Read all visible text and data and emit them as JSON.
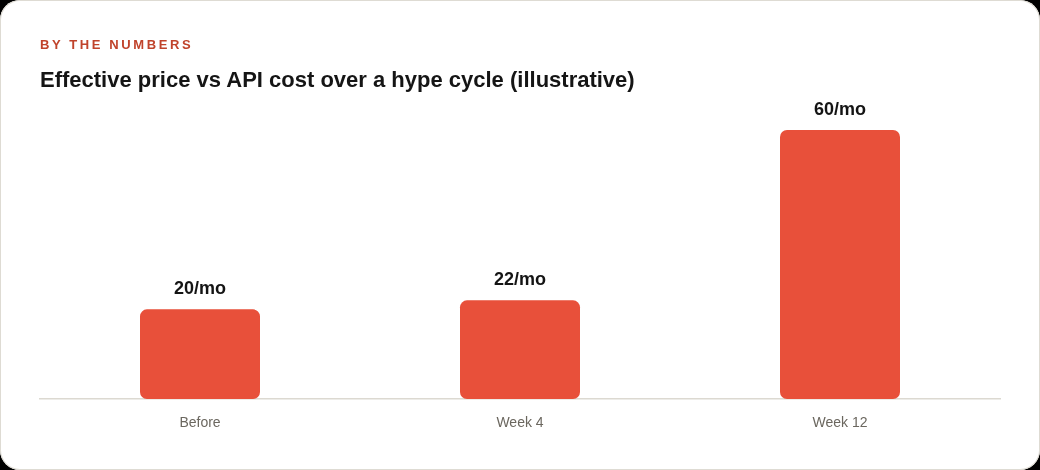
{
  "chart_data": {
    "type": "bar",
    "subtitle": "BY THE NUMBERS",
    "title": "Effective price vs API cost over a hype cycle (illustrative)",
    "categories": [
      "Before",
      "Week 4",
      "Week 12"
    ],
    "values": [
      20,
      22,
      60
    ],
    "color": "#e8503a",
    "value_labels": [
      "20/mo",
      "22/mo",
      "60/mo"
    ]
  }
}
